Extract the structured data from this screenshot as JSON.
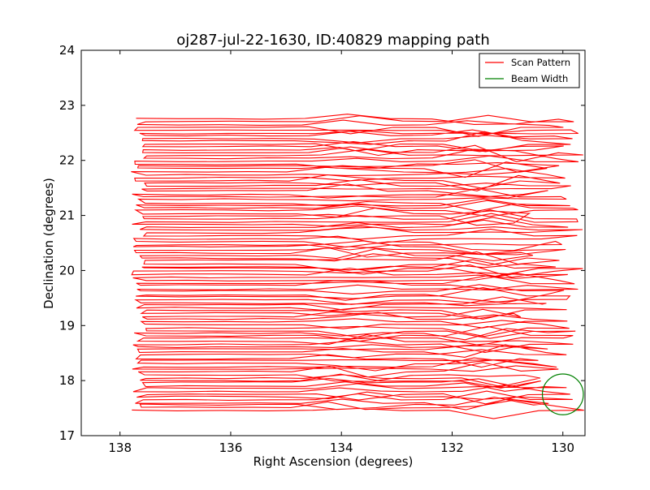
{
  "chart_data": {
    "type": "line",
    "title": "oj287-jul-22-1630, ID:40829 mapping path",
    "xlabel": "Right Ascension (degrees)",
    "ylabel": "Declination (degrees)",
    "xlim": [
      138.7,
      129.6
    ],
    "ylim": [
      17,
      24
    ],
    "x_inverted": true,
    "xticks": [
      138,
      136,
      134,
      132,
      130
    ],
    "yticks": [
      17,
      18,
      19,
      20,
      21,
      22,
      23,
      24
    ],
    "xtick_labels": [
      "138",
      "136",
      "134",
      "132",
      "130"
    ],
    "ytick_labels": [
      "17",
      "18",
      "19",
      "20",
      "21",
      "22",
      "23",
      "24"
    ],
    "grid": false,
    "legend_position": "top-right",
    "series": [
      {
        "name": "Scan Pattern",
        "color": "#ff0000",
        "kind": "raster-scan",
        "ra_start_range": [
          137.8,
          137.5
        ],
        "ra_end_range": [
          130.9,
          129.6
        ],
        "dec_range": [
          17.45,
          22.75
        ],
        "row_spacing_deg": 0.05,
        "approx_rows": 106
      },
      {
        "name": "Beam Width",
        "color": "#008000",
        "kind": "circle",
        "center_ra": 130.0,
        "center_dec": 17.75,
        "radius_deg": 0.37
      }
    ]
  }
}
